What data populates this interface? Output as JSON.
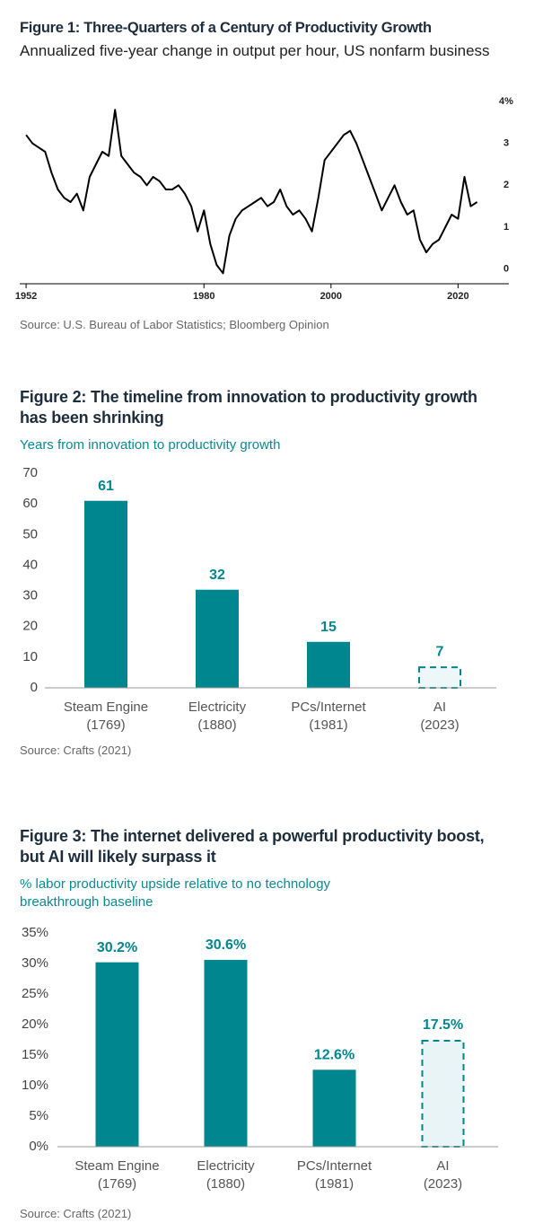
{
  "chart_data": [
    {
      "type": "line",
      "title": "Figure 1: Three-Quarters of a Century of Productivity Growth",
      "subtitle": "Annualized five-year change in output per hour, US nonfarm business",
      "source": "Source: U.S. Bureau of Labor Statistics; Bloomberg Opinion",
      "x": [
        1952,
        1953,
        1954,
        1955,
        1956,
        1957,
        1958,
        1959,
        1960,
        1961,
        1962,
        1963,
        1964,
        1965,
        1966,
        1967,
        1968,
        1969,
        1970,
        1971,
        1972,
        1973,
        1974,
        1975,
        1976,
        1977,
        1978,
        1979,
        1980,
        1981,
        1982,
        1983,
        1984,
        1985,
        1986,
        1987,
        1988,
        1989,
        1990,
        1991,
        1992,
        1993,
        1994,
        1995,
        1996,
        1997,
        1998,
        1999,
        2000,
        2001,
        2002,
        2003,
        2004,
        2005,
        2006,
        2007,
        2008,
        2009,
        2010,
        2011,
        2012,
        2013,
        2014,
        2015,
        2016,
        2017,
        2018,
        2019,
        2020,
        2021,
        2022,
        2023
      ],
      "values": [
        3.2,
        3.0,
        2.9,
        2.8,
        2.3,
        1.9,
        1.7,
        1.6,
        1.8,
        1.4,
        2.2,
        2.5,
        2.8,
        2.7,
        3.8,
        2.7,
        2.5,
        2.3,
        2.2,
        2.0,
        2.2,
        2.1,
        1.9,
        1.9,
        2.0,
        1.8,
        1.5,
        0.9,
        1.4,
        0.6,
        0.1,
        -0.1,
        0.8,
        1.2,
        1.4,
        1.5,
        1.6,
        1.7,
        1.5,
        1.6,
        1.9,
        1.5,
        1.3,
        1.4,
        1.2,
        0.9,
        1.7,
        2.6,
        2.8,
        3.0,
        3.2,
        3.3,
        3.0,
        2.6,
        2.2,
        1.8,
        1.4,
        1.7,
        2.0,
        1.6,
        1.3,
        1.4,
        0.7,
        0.4,
        0.6,
        0.7,
        1.0,
        1.3,
        1.2,
        2.2,
        1.5,
        1.6
      ],
      "color": "#000000",
      "xlim": [
        1951,
        2028
      ],
      "xticks": [
        1952,
        1980,
        2000,
        2020
      ],
      "ylim": [
        -0.35,
        4
      ],
      "yticks": [
        {
          "value": 4,
          "label": "4%"
        },
        3,
        2,
        1,
        0
      ]
    },
    {
      "type": "bar",
      "title": "Figure 2: The timeline from innovation to productivity growth has been shrinking",
      "subtitle": "Years from innovation to productivity growth",
      "source": "Source: Crafts (2021)",
      "categories": [
        "Steam Engine\n(1769)",
        "Electricity\n(1880)",
        "PCs/Internet\n(1981)",
        "AI\n(2023)"
      ],
      "values": [
        61,
        32,
        15,
        7
      ],
      "colors": [
        "#00868f",
        "#00868f",
        "#00868f",
        "#eef7f8"
      ],
      "dashed": [
        false,
        false,
        false,
        true
      ],
      "ylim": [
        0,
        70
      ],
      "yticks": [
        0,
        10,
        20,
        30,
        40,
        50,
        60,
        70
      ]
    },
    {
      "type": "bar",
      "title": "Figure 3: The internet delivered a powerful productivity boost, but AI will likely surpass it",
      "subtitle": "% labor productivity upside relative to no technology breakthrough baseline",
      "source": "Source: Crafts (2021)",
      "categories": [
        "Steam Engine\n(1769)",
        "Electricity\n(1880)",
        "PCs/Internet\n(1981)",
        "AI\n(2023)"
      ],
      "values": [
        30.2,
        30.6,
        12.6,
        17.5
      ],
      "value_labels": [
        "30.2%",
        "30.6%",
        "12.6%",
        "17.5%"
      ],
      "colors": [
        "#00868f",
        "#00868f",
        "#00868f",
        "#e8f4f5"
      ],
      "dashed": [
        false,
        false,
        false,
        true
      ],
      "ylim": [
        0,
        35
      ],
      "yticks": [
        {
          "value": 0,
          "label": "0%"
        },
        {
          "value": 5,
          "label": "5%"
        },
        {
          "value": 10,
          "label": "10%"
        },
        {
          "value": 15,
          "label": "15%"
        },
        {
          "value": 20,
          "label": "20%"
        },
        {
          "value": 25,
          "label": "25%"
        },
        {
          "value": 30,
          "label": "30%"
        },
        {
          "value": 35,
          "label": "35%"
        }
      ]
    }
  ]
}
